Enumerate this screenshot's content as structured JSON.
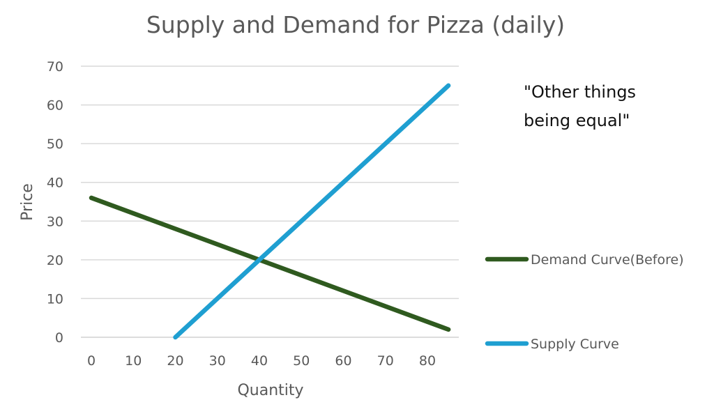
{
  "chart_data": {
    "type": "line",
    "title": "Supply and Demand for Pizza (daily)",
    "xlabel": "Quantity",
    "ylabel": "Price",
    "xlim": [
      0,
      85
    ],
    "ylim": [
      0,
      70
    ],
    "x_ticks": [
      "0",
      "10",
      "20",
      "30",
      "40",
      "50",
      "60",
      "70",
      "80"
    ],
    "y_ticks": [
      "0",
      "10",
      "20",
      "30",
      "40",
      "50",
      "60",
      "70"
    ],
    "grid": true,
    "legend_position": "right",
    "series": [
      {
        "name": "Demand Curve(Before)",
        "color": "#2f5a1f",
        "points": [
          {
            "x": 0,
            "y": 36
          },
          {
            "x": 85,
            "y": 2
          }
        ]
      },
      {
        "name": "Supply Curve",
        "color": "#1f9fd1",
        "points": [
          {
            "x": 20,
            "y": 0
          },
          {
            "x": 85,
            "y": 65
          }
        ]
      }
    ],
    "annotations": [
      {
        "lines": [
          "\"Other things",
          "being equal\""
        ]
      }
    ]
  }
}
